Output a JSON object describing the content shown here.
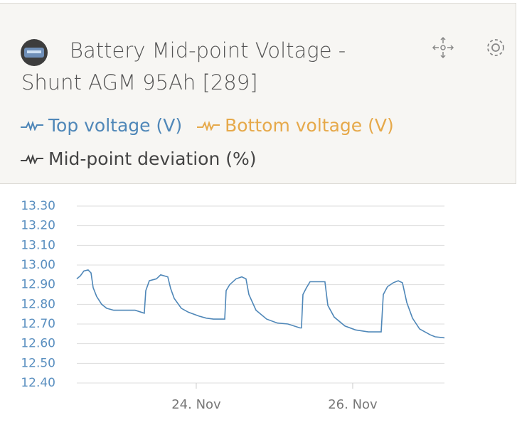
{
  "chart_data": {
    "type": "line",
    "title": "Battery Mid-point Voltage - Shunt AGM 95Ah [289]",
    "x": [
      22.473,
      22.518,
      22.564,
      22.618,
      22.655,
      22.682,
      22.727,
      22.791,
      22.855,
      22.945,
      23.218,
      23.336,
      23.355,
      23.4,
      23.491,
      23.545,
      23.636,
      23.673,
      23.718,
      23.809,
      23.9,
      24.036,
      24.127,
      24.218,
      24.364,
      24.382,
      24.427,
      24.509,
      24.582,
      24.636,
      24.673,
      24.764,
      24.9,
      25.036,
      25.173,
      25.327,
      25.345,
      25.364,
      25.409,
      25.455,
      25.645,
      25.682,
      25.764,
      25.9,
      26.036,
      26.2,
      26.364,
      26.391,
      26.445,
      26.518,
      26.582,
      26.636,
      26.691,
      26.764,
      26.855,
      26.991,
      27.055,
      27.173
    ],
    "series": [
      {
        "name": "Top voltage (V)",
        "color": "#4f87b8",
        "values": [
          12.93,
          12.945,
          12.97,
          12.975,
          12.96,
          12.885,
          12.84,
          12.8,
          12.78,
          12.77,
          12.77,
          12.755,
          12.87,
          12.92,
          12.93,
          12.95,
          12.94,
          12.88,
          12.83,
          12.78,
          12.76,
          12.74,
          12.73,
          12.725,
          12.725,
          12.87,
          12.9,
          12.93,
          12.94,
          12.93,
          12.85,
          12.77,
          12.725,
          12.705,
          12.7,
          12.68,
          12.68,
          12.85,
          12.885,
          12.915,
          12.915,
          12.795,
          12.735,
          12.69,
          12.67,
          12.66,
          12.66,
          12.85,
          12.89,
          12.91,
          12.92,
          12.91,
          12.81,
          12.73,
          12.675,
          12.645,
          12.635,
          12.63
        ]
      },
      {
        "name": "Bottom voltage (V)",
        "color": "#e6a94a",
        "values": [
          null,
          null,
          null,
          null,
          null,
          null,
          null,
          null,
          null,
          null,
          null,
          null,
          null,
          null,
          null,
          null,
          null,
          null,
          null,
          null,
          null,
          null,
          null,
          null,
          null,
          null,
          null,
          null,
          null,
          null,
          null,
          null,
          null,
          null,
          null,
          null,
          null,
          null,
          null,
          null,
          null,
          null,
          null,
          null,
          null,
          null,
          null,
          null,
          null,
          null,
          null,
          null,
          null,
          null,
          null,
          null,
          null,
          null
        ]
      },
      {
        "name": "Mid-point deviation (%)",
        "color": "#444444",
        "values": [
          null,
          null,
          null,
          null,
          null,
          null,
          null,
          null,
          null,
          null,
          null,
          null,
          null,
          null,
          null,
          null,
          null,
          null,
          null,
          null,
          null,
          null,
          null,
          null,
          null,
          null,
          null,
          null,
          null,
          null,
          null,
          null,
          null,
          null,
          null,
          null,
          null,
          null,
          null,
          null,
          null,
          null,
          null,
          null,
          null,
          null,
          null,
          null,
          null,
          null,
          null,
          null,
          null,
          null,
          null,
          null,
          null,
          null
        ]
      }
    ],
    "xlim": [
      22.473,
      27.173
    ],
    "xticks": [
      {
        "value": 24,
        "label": "24. Nov"
      },
      {
        "value": 26,
        "label": "26. Nov"
      }
    ],
    "ylim": [
      12.4,
      13.3
    ],
    "yticks": [
      {
        "value": 12.4,
        "label": "12.40"
      },
      {
        "value": 12.5,
        "label": "12.50"
      },
      {
        "value": 12.6,
        "label": "12.60"
      },
      {
        "value": 12.7,
        "label": "12.70"
      },
      {
        "value": 12.8,
        "label": "12.80"
      },
      {
        "value": 12.9,
        "label": "12.90"
      },
      {
        "value": 13.0,
        "label": "13.00"
      },
      {
        "value": 13.1,
        "label": "13.10"
      },
      {
        "value": 13.2,
        "label": "13.20"
      },
      {
        "value": 13.3,
        "label": "13.30"
      }
    ],
    "grid": true
  }
}
